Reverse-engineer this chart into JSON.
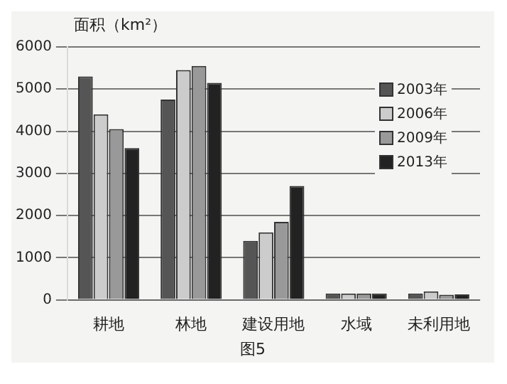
{
  "chart_data": {
    "type": "bar",
    "ylabel": "面积（km²）",
    "categories": [
      "耕地",
      "林地",
      "建设用地",
      "水域",
      "未利用地"
    ],
    "series": [
      {
        "name": "2003年",
        "color": "#555555",
        "values": [
          5300,
          4750,
          1400,
          150,
          150
        ]
      },
      {
        "name": "2006年",
        "color": "#cccccc",
        "values": [
          4400,
          5450,
          1600,
          150,
          200
        ]
      },
      {
        "name": "2009年",
        "color": "#999999",
        "values": [
          4050,
          5550,
          1850,
          150,
          120
        ]
      },
      {
        "name": "2013年",
        "color": "#222222",
        "values": [
          3600,
          5150,
          2700,
          150,
          130
        ]
      }
    ],
    "ylim": [
      0,
      6000
    ],
    "yticks": [
      0,
      1000,
      2000,
      3000,
      4000,
      5000,
      6000
    ],
    "grid": "y",
    "legend": "top right",
    "annotations": [
      "图5"
    ]
  }
}
